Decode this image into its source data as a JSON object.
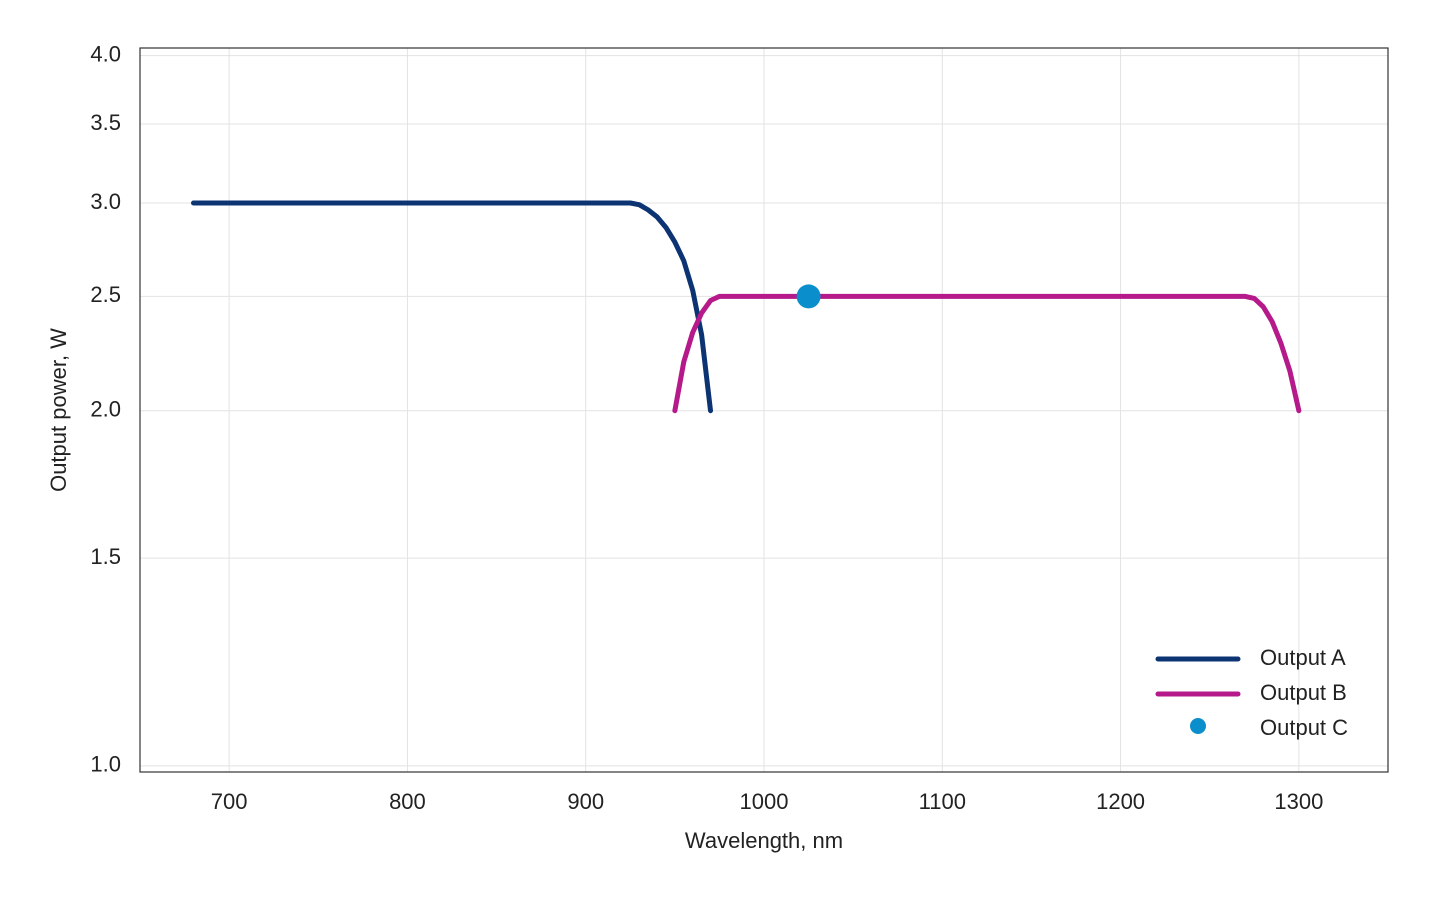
{
  "chart_data": {
    "type": "line",
    "xlabel": "Wavelength, nm",
    "ylabel": "Output power, W",
    "xlim": [
      650,
      1350
    ],
    "xticks": [
      700,
      800,
      900,
      1000,
      1100,
      1200,
      1300
    ],
    "ylim": [
      0.988,
      4.06
    ],
    "yscale": "log",
    "yticks": [
      {
        "value": 1,
        "label": "1.0"
      },
      {
        "value": 1.5,
        "label": "1.5"
      },
      {
        "value": 2,
        "label": "2.0"
      },
      {
        "value": 2.5,
        "label": "2.5"
      },
      {
        "value": 3,
        "label": "3.0"
      },
      {
        "value": 3.5,
        "label": "3.5"
      },
      {
        "value": 4,
        "label": "4.0"
      }
    ],
    "grid": true,
    "legend": "lower right",
    "series": [
      {
        "name": "Output A",
        "type": "line",
        "color": "#0c3473",
        "x": [
          680,
          925,
          930,
          935,
          940,
          945,
          950,
          955,
          960,
          965,
          970
        ],
        "values": [
          3.0,
          3.0,
          2.99,
          2.96,
          2.92,
          2.86,
          2.78,
          2.68,
          2.53,
          2.32,
          2.0
        ]
      },
      {
        "name": "Output B",
        "type": "line",
        "color": "#b5198a",
        "x": [
          950,
          955,
          960,
          965,
          970,
          975,
          1270,
          1275,
          1280,
          1285,
          1290,
          1295,
          1300
        ],
        "values": [
          2.0,
          2.2,
          2.33,
          2.42,
          2.48,
          2.5,
          2.5,
          2.49,
          2.45,
          2.38,
          2.28,
          2.16,
          2.0
        ]
      },
      {
        "name": "Output C",
        "type": "scatter",
        "color": "#0a8fcc",
        "x": [
          1025
        ],
        "values": [
          2.5
        ]
      }
    ]
  }
}
